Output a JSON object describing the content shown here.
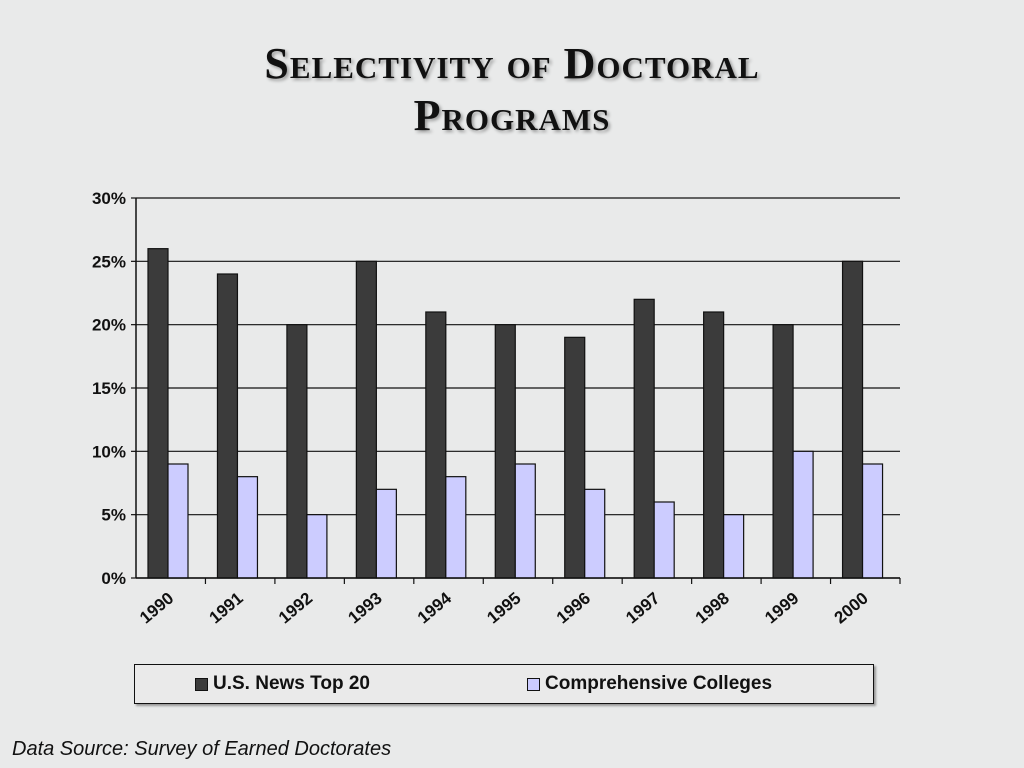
{
  "title_lines": [
    "Selectivity of Doctoral",
    "Programs"
  ],
  "source": "Data Source: Survey of Earned Doctorates",
  "colors": {
    "series1": "#3b3b3b",
    "series2": "#ccccff"
  },
  "chart_data": {
    "type": "bar",
    "title": "Selectivity of Doctoral Programs",
    "categories": [
      "1990",
      "1991",
      "1992",
      "1993",
      "1994",
      "1995",
      "1996",
      "1997",
      "1998",
      "1999",
      "2000"
    ],
    "series": [
      {
        "name": "U.S. News Top 20",
        "values": [
          26,
          24,
          20,
          25,
          21,
          20,
          19,
          22,
          21,
          20,
          25
        ]
      },
      {
        "name": "Comprehensive Colleges",
        "values": [
          9,
          8,
          5,
          7,
          8,
          9,
          7,
          6,
          5,
          10,
          9
        ]
      }
    ],
    "ylim": [
      0,
      30
    ],
    "yticks": [
      0,
      5,
      10,
      15,
      20,
      25,
      30
    ],
    "ytick_labels": [
      "0%",
      "5%",
      "10%",
      "15%",
      "20%",
      "25%",
      "30%"
    ],
    "grid": true,
    "legend": "bottom"
  }
}
